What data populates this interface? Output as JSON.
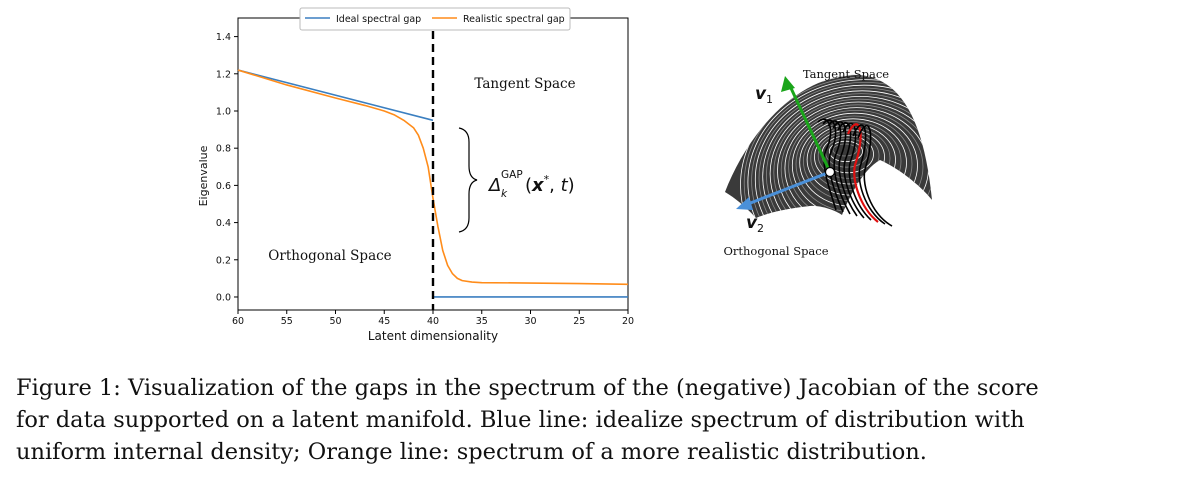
{
  "chart_data": {
    "type": "line",
    "xlabel": "Latent dimensionality",
    "ylabel": "Eigenvalue",
    "xlim": [
      60,
      20
    ],
    "ylim": [
      -0.07,
      1.5
    ],
    "x_ticks": [
      60,
      55,
      50,
      45,
      40,
      35,
      30,
      25,
      20
    ],
    "y_ticks": [
      0.0,
      0.2,
      0.4,
      0.6,
      0.8,
      1.0,
      1.2,
      1.4
    ],
    "x_tick_labels": [
      "60",
      "55",
      "50",
      "45",
      "40",
      "35",
      "30",
      "25",
      "20"
    ],
    "y_tick_labels": [
      "0.0",
      "0.2",
      "0.4",
      "0.6",
      "0.8",
      "1.0",
      "1.2",
      "1.4"
    ],
    "legend_position": "top-center",
    "vertical_line": {
      "x": 40,
      "style": "dashed",
      "color": "#000000"
    },
    "series": [
      {
        "name": "Ideal spectral gap",
        "color": "#3b7fc0",
        "segments": [
          {
            "x": [
              60,
              40
            ],
            "y": [
              1.22,
              0.95
            ]
          },
          {
            "x": [
              40,
              20
            ],
            "y": [
              0.0,
              0.0
            ]
          }
        ]
      },
      {
        "name": "Realistic spectral gap",
        "color": "#ff8c1a",
        "x": [
          60,
          55,
          50,
          47,
          45,
          44,
          43,
          42,
          41.5,
          41,
          40.5,
          40,
          39.5,
          39,
          38.5,
          38,
          37.5,
          37,
          36,
          35,
          30,
          25,
          20
        ],
        "y": [
          1.22,
          1.14,
          1.07,
          1.03,
          1.0,
          0.98,
          0.95,
          0.91,
          0.87,
          0.8,
          0.7,
          0.53,
          0.38,
          0.25,
          0.17,
          0.125,
          0.1,
          0.088,
          0.08,
          0.077,
          0.075,
          0.072,
          0.068
        ]
      }
    ],
    "annotations": {
      "tangent": "Tangent Space",
      "orthogonal": "Orthogonal Space",
      "gap_label": "Δ_k^GAP(x*, t)"
    }
  },
  "manifold_panel": {
    "tangent_label": "Tangent Space",
    "orthogonal_label": "Orthogonal Space",
    "v1_label": "v",
    "v1_subscript": "1",
    "v2_label": "v",
    "v2_subscript": "2",
    "v1_color": "#1aa51a",
    "v2_color": "#4a90d9",
    "contour_color": "#000000",
    "highlight_color": "#e01010"
  },
  "caption": {
    "lines": [
      "Figure 1: Visualization of the gaps in the spectrum of the (negative) Jacobian of the score",
      "for data supported on a latent manifold. Blue line: idealize spectrum of distribution with",
      "uniform internal density; Orange line: spectrum of a more realistic distribution."
    ]
  }
}
